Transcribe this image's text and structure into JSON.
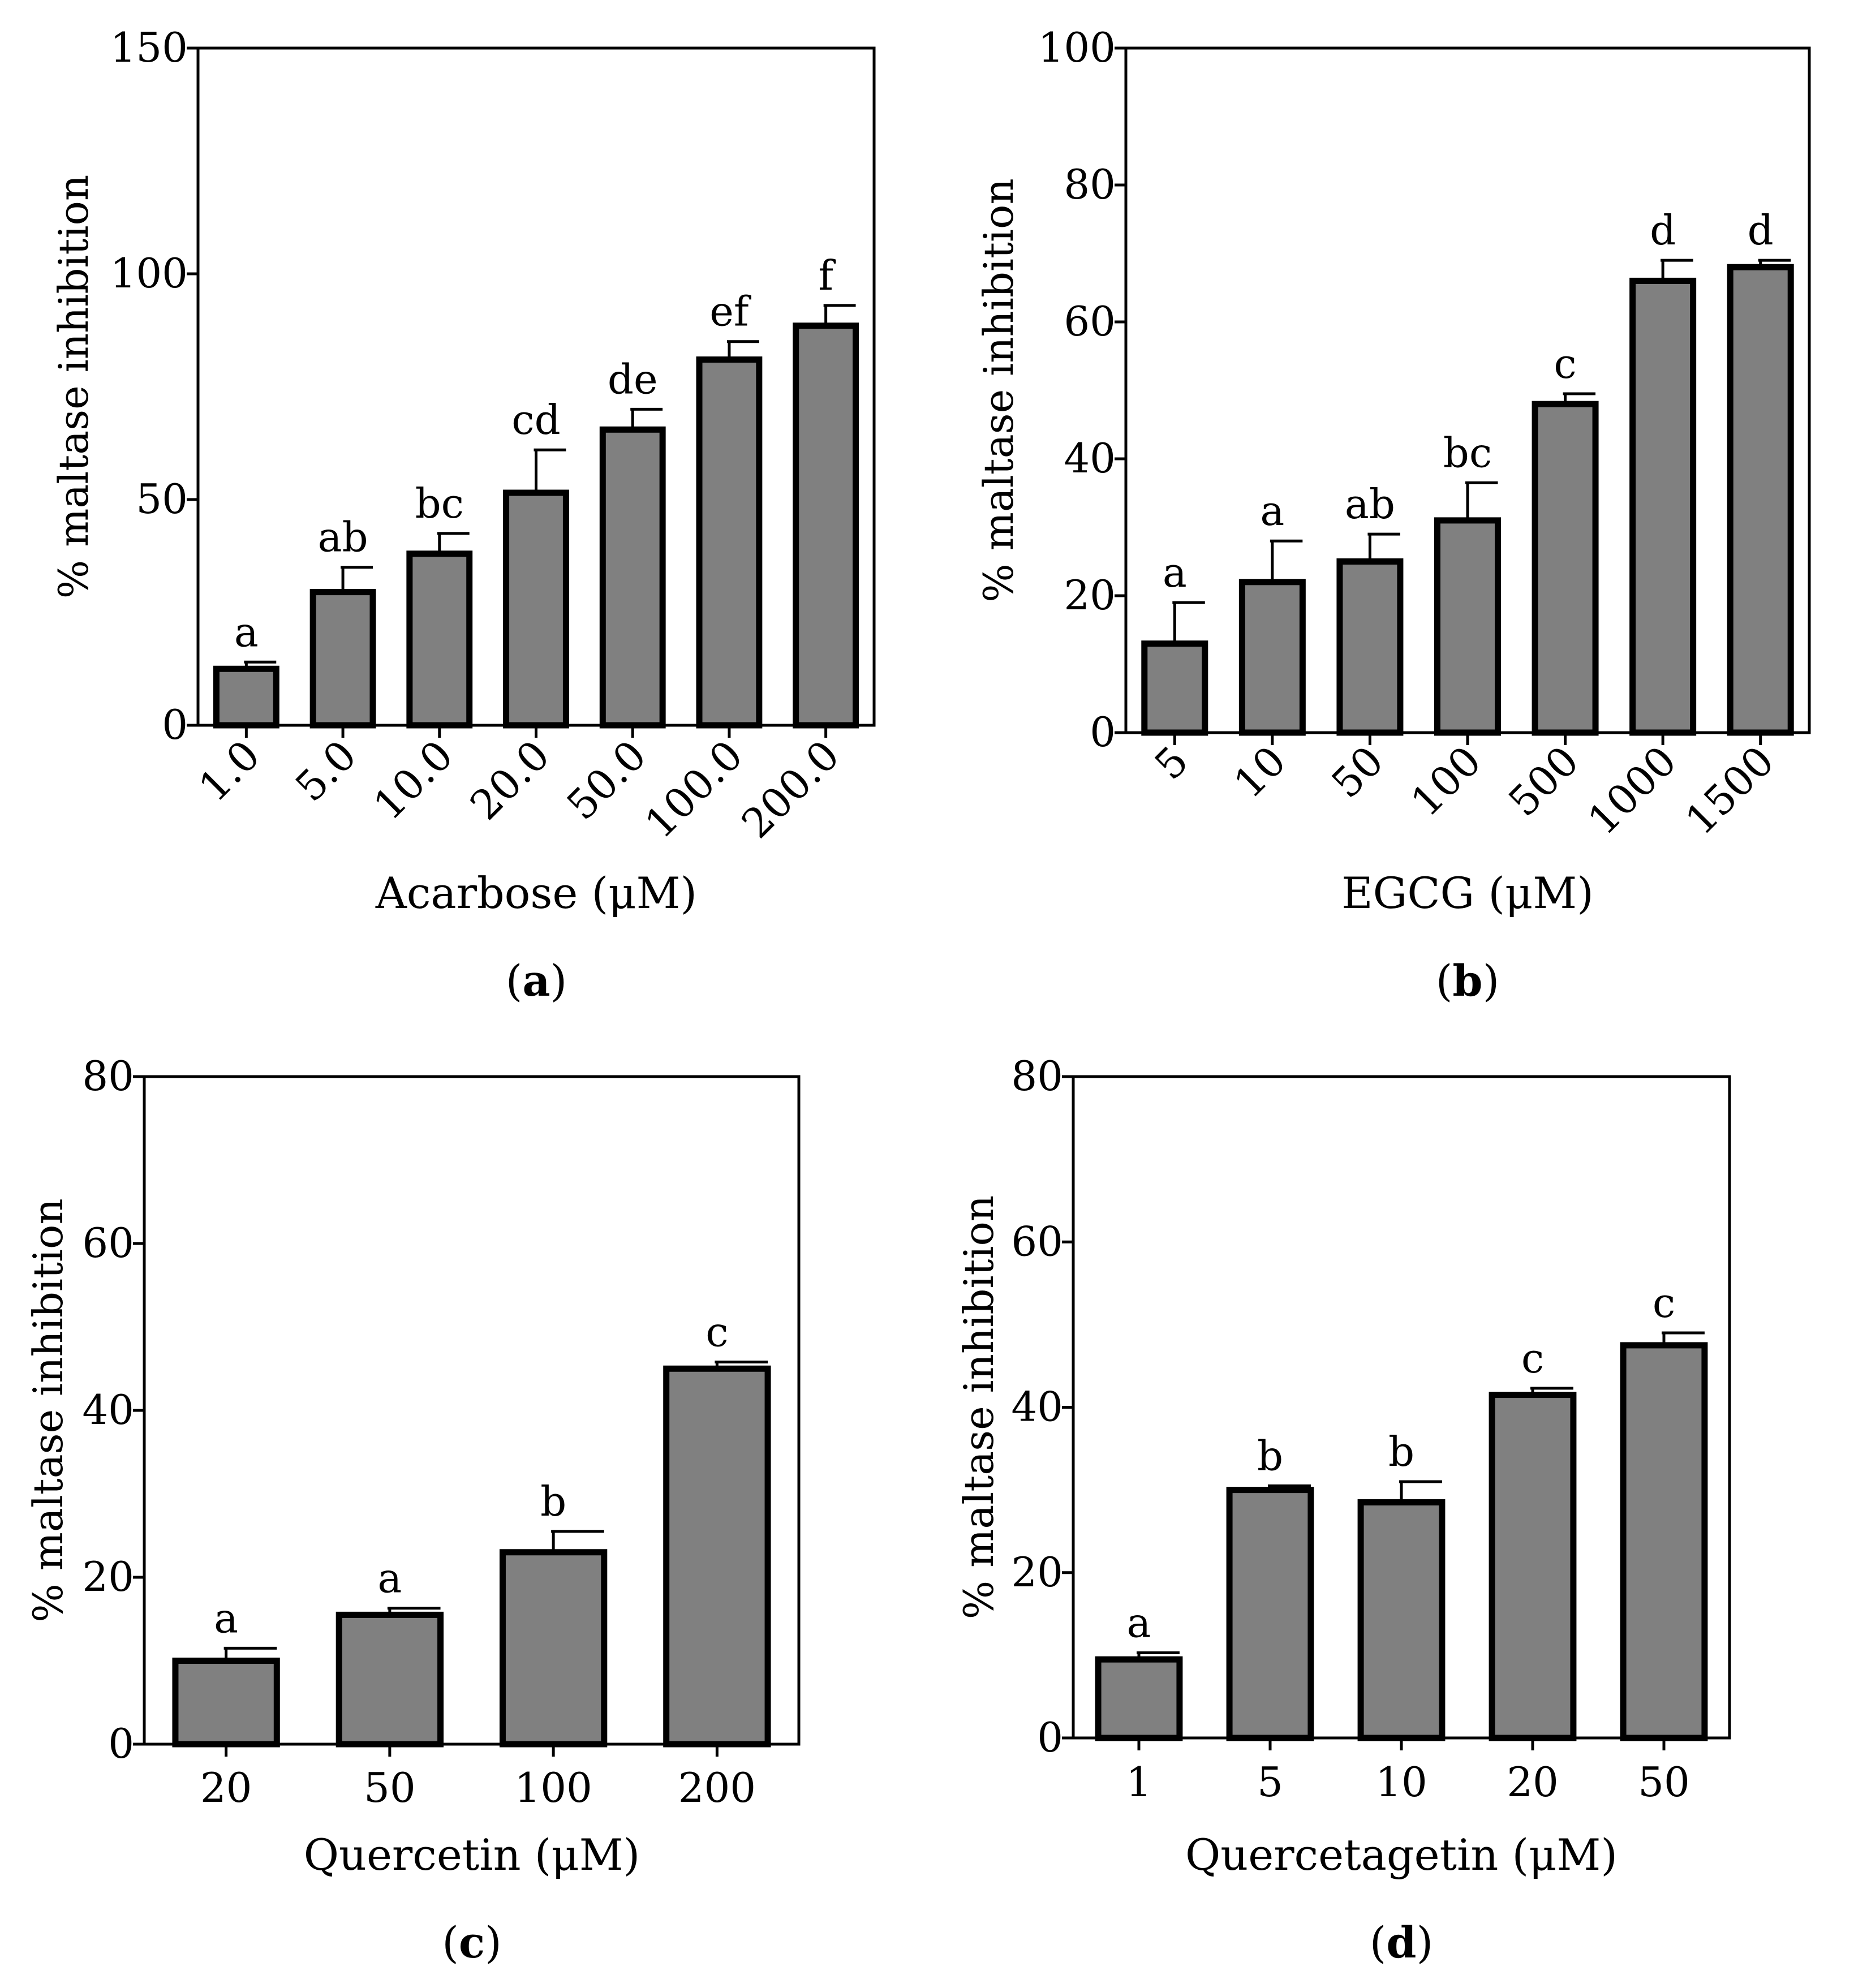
{
  "chart_data": [
    {
      "id": "a",
      "type": "bar",
      "panel_label": "a",
      "categories": [
        "1.0",
        "5.0",
        "10.0",
        "20.0",
        "50.0",
        "100.0",
        "200.0"
      ],
      "values": [
        12.5,
        29.5,
        38,
        51.5,
        65.5,
        81,
        88.5
      ],
      "errors": [
        1.5,
        5.5,
        4.5,
        9.5,
        4.5,
        4,
        4.5
      ],
      "significance": [
        "a",
        "ab",
        "bc",
        "cd",
        "de",
        "ef",
        "f"
      ],
      "xlabel": "Acarbose (μM)",
      "ylabel": "% maltase inhibition",
      "ylim": [
        0,
        150
      ],
      "yticks": [
        0,
        50,
        100,
        150
      ],
      "rotated_ticks": true
    },
    {
      "id": "b",
      "type": "bar",
      "panel_label": "b",
      "categories": [
        "5",
        "10",
        "50",
        "100",
        "500",
        "1000",
        "1500"
      ],
      "values": [
        13,
        22,
        25,
        31,
        48,
        66,
        68
      ],
      "errors": [
        6,
        6,
        4,
        5.5,
        1.5,
        3,
        1
      ],
      "significance": [
        "a",
        "a",
        "ab",
        "bc",
        "c",
        "d",
        "d"
      ],
      "xlabel": "EGCG (μM)",
      "ylabel": "% maltase inhibition",
      "ylim": [
        0,
        100
      ],
      "yticks": [
        0,
        20,
        40,
        60,
        80,
        100
      ],
      "rotated_ticks": true
    },
    {
      "id": "c",
      "type": "bar",
      "panel_label": "c",
      "categories": [
        "20",
        "50",
        "100",
        "200"
      ],
      "values": [
        10,
        15.5,
        23,
        45
      ],
      "errors": [
        1.5,
        0.8,
        2.5,
        0.8
      ],
      "significance": [
        "a",
        "a",
        "b",
        "c"
      ],
      "xlabel": "Quercetin (μM)",
      "ylabel": "% maltase inhibition",
      "ylim": [
        0,
        80
      ],
      "yticks": [
        0,
        20,
        40,
        60,
        80
      ],
      "rotated_ticks": false
    },
    {
      "id": "d",
      "type": "bar",
      "panel_label": "d",
      "categories": [
        "1",
        "5",
        "10",
        "20",
        "50"
      ],
      "values": [
        9.5,
        30,
        28.5,
        41.5,
        47.5
      ],
      "errors": [
        0.8,
        0.5,
        2.5,
        0.8,
        1.5
      ],
      "significance": [
        "a",
        "b",
        "b",
        "c",
        "c"
      ],
      "xlabel": "Quercetagetin (μM)",
      "ylabel": "% maltase inhibition",
      "ylim": [
        0,
        80
      ],
      "yticks": [
        0,
        20,
        40,
        60,
        80
      ],
      "rotated_ticks": false
    }
  ],
  "colors": {
    "bar_fill": "#808080",
    "bar_stroke": "#000000",
    "axis": "#000000"
  }
}
